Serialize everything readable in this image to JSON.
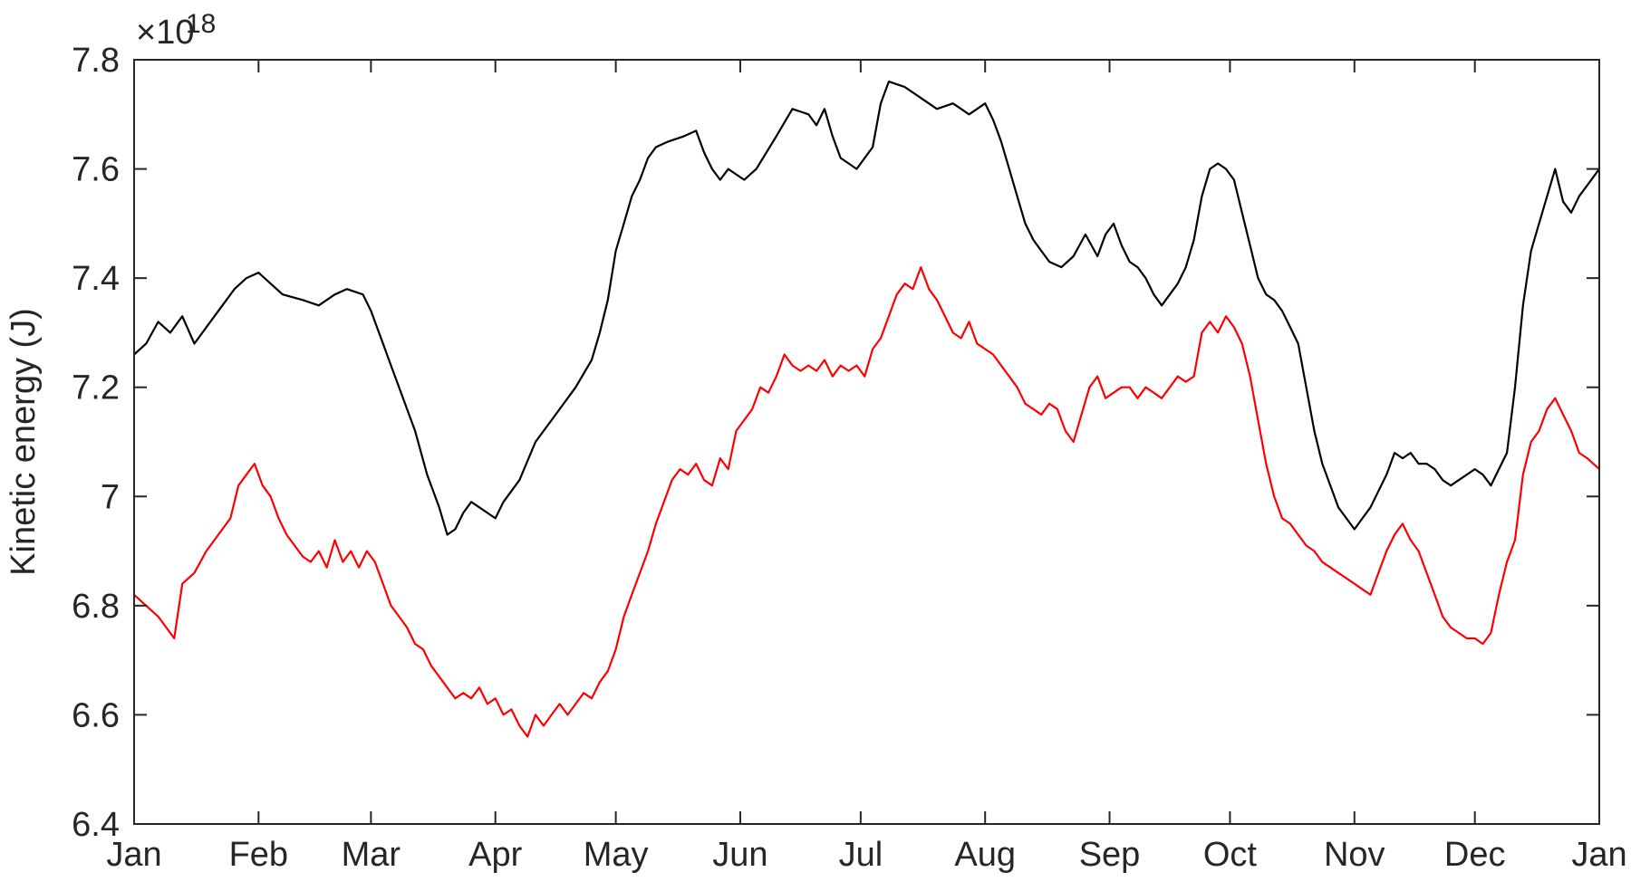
{
  "chart_data": {
    "type": "line",
    "ylabel": "Kinetic energy (J)",
    "y_multiplier": "×10",
    "y_exponent": "18",
    "ylim": [
      6.4,
      7.8
    ],
    "yticks": [
      6.4,
      6.6,
      6.8,
      7.0,
      7.2,
      7.4,
      7.6,
      7.8
    ],
    "ytick_labels": [
      "6.4",
      "6.6",
      "6.8",
      "7",
      "7.2",
      "7.4",
      "7.6",
      "7.8"
    ],
    "xlim": [
      0,
      365
    ],
    "xticks": [
      0,
      31,
      59,
      90,
      120,
      151,
      181,
      212,
      243,
      273,
      304,
      334,
      365
    ],
    "xtick_labels": [
      "Jan",
      "Feb",
      "Mar",
      "Apr",
      "May",
      "Jun",
      "Jul",
      "Aug",
      "Sep",
      "Oct",
      "Nov",
      "Dec",
      "Jan"
    ],
    "grid": false,
    "series": [
      {
        "color": "#000000",
        "x": [
          0,
          3,
          6,
          9,
          12,
          15,
          20,
          25,
          28,
          31,
          34,
          37,
          42,
          46,
          50,
          53,
          57,
          59,
          62,
          64,
          67,
          70,
          73,
          76,
          78,
          80,
          82,
          84,
          86,
          88,
          90,
          92,
          96,
          100,
          105,
          110,
          114,
          116,
          118,
          120,
          122,
          124,
          126,
          128,
          130,
          133,
          137,
          140,
          142,
          144,
          146,
          148,
          150,
          152,
          155,
          160,
          164,
          168,
          170,
          172,
          174,
          176,
          178,
          180,
          182,
          184,
          186,
          188,
          192,
          196,
          200,
          204,
          208,
          212,
          214,
          216,
          218,
          220,
          222,
          224,
          226,
          228,
          231,
          234,
          237,
          240,
          242,
          244,
          246,
          248,
          250,
          252,
          254,
          256,
          258,
          260,
          262,
          264,
          266,
          268,
          270,
          272,
          274,
          276,
          278,
          280,
          282,
          284,
          286,
          288,
          290,
          292,
          294,
          296,
          298,
          300,
          302,
          304,
          306,
          308,
          310,
          312,
          314,
          316,
          318,
          320,
          322,
          324,
          326,
          328,
          330,
          332,
          334,
          336,
          338,
          340,
          342,
          344,
          346,
          348,
          350,
          352,
          354,
          356,
          358,
          360,
          362,
          365
        ],
        "y": [
          7.26,
          7.28,
          7.32,
          7.3,
          7.33,
          7.28,
          7.33,
          7.38,
          7.4,
          7.41,
          7.39,
          7.37,
          7.36,
          7.35,
          7.37,
          7.38,
          7.37,
          7.34,
          7.28,
          7.24,
          7.18,
          7.12,
          7.04,
          6.98,
          6.93,
          6.94,
          6.97,
          6.99,
          6.98,
          6.97,
          6.96,
          6.99,
          7.03,
          7.1,
          7.15,
          7.2,
          7.25,
          7.3,
          7.36,
          7.45,
          7.5,
          7.55,
          7.58,
          7.62,
          7.64,
          7.65,
          7.66,
          7.67,
          7.63,
          7.6,
          7.58,
          7.6,
          7.59,
          7.58,
          7.6,
          7.66,
          7.71,
          7.7,
          7.68,
          7.71,
          7.66,
          7.62,
          7.61,
          7.6,
          7.62,
          7.64,
          7.72,
          7.76,
          7.75,
          7.73,
          7.71,
          7.72,
          7.7,
          7.72,
          7.69,
          7.65,
          7.6,
          7.55,
          7.5,
          7.47,
          7.45,
          7.43,
          7.42,
          7.44,
          7.48,
          7.44,
          7.48,
          7.5,
          7.46,
          7.43,
          7.42,
          7.4,
          7.37,
          7.35,
          7.37,
          7.39,
          7.42,
          7.47,
          7.55,
          7.6,
          7.61,
          7.6,
          7.58,
          7.52,
          7.46,
          7.4,
          7.37,
          7.36,
          7.34,
          7.31,
          7.28,
          7.2,
          7.12,
          7.06,
          7.02,
          6.98,
          6.96,
          6.94,
          6.96,
          6.98,
          7.01,
          7.04,
          7.08,
          7.07,
          7.08,
          7.06,
          7.06,
          7.05,
          7.03,
          7.02,
          7.03,
          7.04,
          7.05,
          7.04,
          7.02,
          7.05,
          7.08,
          7.2,
          7.35,
          7.45,
          7.5,
          7.55,
          7.6,
          7.54,
          7.52,
          7.55,
          7.57,
          7.6
        ]
      },
      {
        "color": "#ff0000",
        "x": [
          0,
          3,
          6,
          9,
          10,
          12,
          15,
          18,
          21,
          24,
          26,
          28,
          30,
          32,
          34,
          36,
          38,
          40,
          42,
          44,
          46,
          48,
          50,
          52,
          54,
          56,
          58,
          60,
          62,
          64,
          66,
          68,
          70,
          72,
          74,
          76,
          78,
          80,
          82,
          84,
          86,
          88,
          90,
          92,
          94,
          96,
          98,
          100,
          102,
          104,
          106,
          108,
          110,
          112,
          114,
          116,
          118,
          120,
          122,
          124,
          126,
          128,
          130,
          132,
          134,
          136,
          138,
          140,
          142,
          144,
          146,
          148,
          150,
          152,
          154,
          156,
          158,
          160,
          162,
          164,
          166,
          168,
          170,
          172,
          174,
          176,
          178,
          180,
          182,
          184,
          186,
          188,
          190,
          192,
          194,
          196,
          198,
          200,
          202,
          204,
          206,
          208,
          210,
          212,
          214,
          216,
          218,
          220,
          222,
          224,
          226,
          228,
          230,
          232,
          234,
          236,
          238,
          240,
          242,
          244,
          246,
          248,
          250,
          252,
          254,
          256,
          258,
          260,
          262,
          264,
          266,
          268,
          270,
          272,
          274,
          276,
          278,
          280,
          282,
          284,
          286,
          288,
          290,
          292,
          294,
          296,
          298,
          300,
          302,
          304,
          306,
          308,
          310,
          312,
          314,
          316,
          318,
          320,
          322,
          324,
          326,
          328,
          330,
          332,
          334,
          336,
          338,
          340,
          342,
          344,
          346,
          348,
          350,
          352,
          354,
          356,
          358,
          360,
          362,
          365
        ],
        "y": [
          6.82,
          6.8,
          6.78,
          6.75,
          6.74,
          6.84,
          6.86,
          6.9,
          6.93,
          6.96,
          7.02,
          7.04,
          7.06,
          7.02,
          7.0,
          6.96,
          6.93,
          6.91,
          6.89,
          6.88,
          6.9,
          6.87,
          6.92,
          6.88,
          6.9,
          6.87,
          6.9,
          6.88,
          6.84,
          6.8,
          6.78,
          6.76,
          6.73,
          6.72,
          6.69,
          6.67,
          6.65,
          6.63,
          6.64,
          6.63,
          6.65,
          6.62,
          6.63,
          6.6,
          6.61,
          6.58,
          6.56,
          6.6,
          6.58,
          6.6,
          6.62,
          6.6,
          6.62,
          6.64,
          6.63,
          6.66,
          6.68,
          6.72,
          6.78,
          6.82,
          6.86,
          6.9,
          6.95,
          6.99,
          7.03,
          7.05,
          7.04,
          7.06,
          7.03,
          7.02,
          7.07,
          7.05,
          7.12,
          7.14,
          7.16,
          7.2,
          7.19,
          7.22,
          7.26,
          7.24,
          7.23,
          7.24,
          7.23,
          7.25,
          7.22,
          7.24,
          7.23,
          7.24,
          7.22,
          7.27,
          7.29,
          7.33,
          7.37,
          7.39,
          7.38,
          7.42,
          7.38,
          7.36,
          7.33,
          7.3,
          7.29,
          7.32,
          7.28,
          7.27,
          7.26,
          7.24,
          7.22,
          7.2,
          7.17,
          7.16,
          7.15,
          7.17,
          7.16,
          7.12,
          7.1,
          7.15,
          7.2,
          7.22,
          7.18,
          7.19,
          7.2,
          7.2,
          7.18,
          7.2,
          7.19,
          7.18,
          7.2,
          7.22,
          7.21,
          7.22,
          7.3,
          7.32,
          7.3,
          7.33,
          7.31,
          7.28,
          7.22,
          7.14,
          7.06,
          7.0,
          6.96,
          6.95,
          6.93,
          6.91,
          6.9,
          6.88,
          6.87,
          6.86,
          6.85,
          6.84,
          6.83,
          6.82,
          6.86,
          6.9,
          6.93,
          6.95,
          6.92,
          6.9,
          6.86,
          6.82,
          6.78,
          6.76,
          6.75,
          6.74,
          6.74,
          6.73,
          6.75,
          6.82,
          6.88,
          6.92,
          7.04,
          7.1,
          7.12,
          7.16,
          7.18,
          7.15,
          7.12,
          7.08,
          7.07,
          7.05
        ]
      }
    ]
  }
}
